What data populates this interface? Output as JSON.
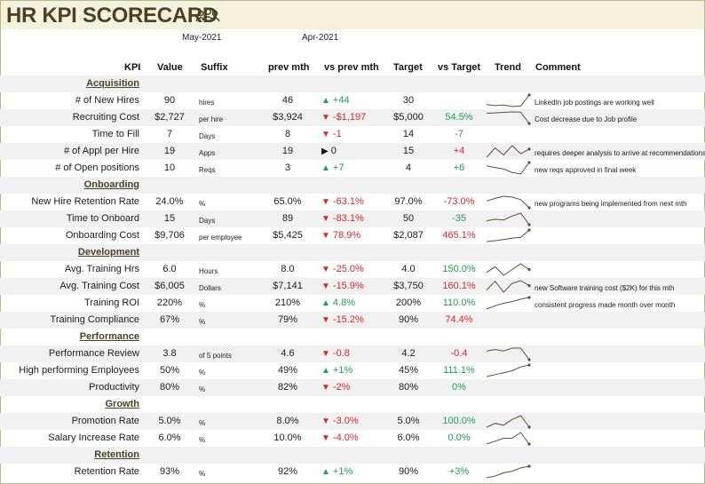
{
  "title": "HR KPI SCORECARD",
  "title_icon": "people-group-icon",
  "dates": {
    "current": "May-2021",
    "previous": "Apr-2021"
  },
  "headers": {
    "kpi": "KPI",
    "value": "Value",
    "suffix": "Suffix",
    "prev": "prev mth",
    "vs_prev": "vs prev mth",
    "target": "Target",
    "vs_target": "vs Target",
    "trend": "Trend",
    "comment": "Comment"
  },
  "colors": {
    "title": "#4b4128",
    "banner": "#f4f1dc",
    "positive": "#1f9e4f",
    "negative": "#d62728",
    "trend_line": "#5c4f3a"
  },
  "sections": [
    {
      "name": "Acquisition",
      "rows": [
        {
          "kpi": "# of New Hires",
          "value": "90",
          "suffix": "hires",
          "prev": "46",
          "dir": "up",
          "vs_prev": "+44",
          "target": "30",
          "vs_target": "",
          "vs_target_status": "",
          "comment": "LinkedIn job postings are working well",
          "trend": [
            52,
            48,
            50,
            44,
            46,
            90
          ]
        },
        {
          "kpi": "Recruiting Cost",
          "value": "$2,727",
          "suffix": "per hire",
          "prev": "$3,924",
          "dir": "down",
          "vs_prev": "-$1,197",
          "target": "$5,000",
          "vs_target": "54.5%",
          "vs_target_status": "good",
          "comment": "Cost decrease due to Job profile",
          "trend": [
            3800,
            3850,
            3900,
            3950,
            3924,
            2727
          ]
        },
        {
          "kpi": "Time to Fill",
          "value": "7",
          "suffix": "Days",
          "prev": "8",
          "dir": "down",
          "vs_prev": "-1",
          "target": "14",
          "vs_target": "-7",
          "vs_target_status": "good",
          "comment": "",
          "trend": []
        },
        {
          "kpi": "# of Appl per Hire",
          "value": "19",
          "suffix": "Apps",
          "prev": "19",
          "dir": "flat",
          "vs_prev": "0",
          "target": "15",
          "vs_target": "+4",
          "vs_target_status": "bad",
          "comment": "requires deeper analysis to arrive at recommendations",
          "trend": [
            12,
            20,
            14,
            22,
            15,
            19
          ]
        },
        {
          "kpi": "# of Open positions",
          "value": "10",
          "suffix": "Reqs",
          "prev": "3",
          "dir": "up",
          "vs_prev": "+7",
          "target": "4",
          "vs_target": "+6",
          "vs_target_status": "good",
          "comment": "new reqs approved in final week",
          "trend": [
            8,
            7,
            6,
            4,
            3,
            10
          ]
        }
      ]
    },
    {
      "name": "Onboarding",
      "rows": [
        {
          "kpi": "New Hire Retention Rate",
          "value": "24.0%",
          "suffix": "%",
          "prev": "65.0%",
          "dir": "down",
          "vs_prev": "-63.1%",
          "target": "97.0%",
          "vs_target": "-73.0%",
          "vs_target_status": "bad",
          "comment": "new programs being implemented from next mth",
          "trend": [
            50,
            60,
            68,
            65,
            55,
            24
          ]
        },
        {
          "kpi": "Time to Onboard",
          "value": "15",
          "suffix": "Days",
          "prev": "89",
          "dir": "down",
          "vs_prev": "-83.1%",
          "target": "50",
          "vs_target": "-35",
          "vs_target_status": "good",
          "comment": "",
          "trend": [
            40,
            50,
            45,
            70,
            89,
            15
          ]
        },
        {
          "kpi": "Onboarding Cost",
          "value": "$9,706",
          "suffix": "per employee",
          "prev": "$5,425",
          "dir": "down",
          "vs_prev": "78.9%",
          "vs_prev_status": "bad",
          "target": "$2,087",
          "vs_target": "465.1%",
          "vs_target_status": "bad",
          "comment": "",
          "trend": [
            3000,
            3500,
            4200,
            5000,
            5425,
            9706
          ]
        }
      ]
    },
    {
      "name": "Development",
      "rows": [
        {
          "kpi": "Avg. Training Hrs",
          "value": "6.0",
          "suffix": "Hours",
          "prev": "8.0",
          "dir": "down",
          "vs_prev": "-25.0%",
          "target": "4.0",
          "vs_target": "150.0%",
          "vs_target_status": "good",
          "comment": "",
          "trend": [
            5,
            7,
            4,
            6,
            8,
            6
          ]
        },
        {
          "kpi": "Avg. Training Cost",
          "value": "$6,005",
          "suffix": "Dollars",
          "prev": "$7,141",
          "dir": "down",
          "vs_prev": "-15.9%",
          "target": "$3,750",
          "vs_target": "160.1%",
          "vs_target_status": "bad",
          "comment": "new Software training cost ($2K) for this mth",
          "trend": [
            5000,
            7000,
            4500,
            6500,
            7141,
            6005
          ]
        },
        {
          "kpi": "Training ROI",
          "value": "220%",
          "suffix": "%",
          "prev": "210%",
          "dir": "up",
          "vs_prev": "4.8%",
          "target": "200%",
          "vs_target": "110.0%",
          "vs_target_status": "good",
          "comment": "consistent progress made month over month",
          "trend": [
            150,
            170,
            185,
            195,
            210,
            220
          ]
        },
        {
          "kpi": "Training Compliance",
          "value": "67%",
          "suffix": "%",
          "prev": "79%",
          "dir": "down",
          "vs_prev": "-15.2%",
          "target": "90%",
          "vs_target": "74.4%",
          "vs_target_status": "bad",
          "comment": "",
          "trend": []
        }
      ]
    },
    {
      "name": "Performance",
      "rows": [
        {
          "kpi": "Performance Review",
          "value": "3.8",
          "suffix": "of 5 points",
          "prev": "4.6",
          "dir": "down",
          "vs_prev": "-0.8",
          "target": "4.2",
          "vs_target": "-0.4",
          "vs_target_status": "bad",
          "comment": "",
          "trend": [
            4.4,
            4.5,
            4.4,
            4.6,
            4.6,
            3.8
          ]
        },
        {
          "kpi": "High performing Employees",
          "value": "50%",
          "suffix": "%",
          "prev": "49%",
          "dir": "up",
          "vs_prev": "+1%",
          "target": "45%",
          "vs_target": "111.1%",
          "vs_target_status": "good",
          "comment": "",
          "trend": [
            44,
            45,
            46,
            47,
            49,
            50
          ]
        },
        {
          "kpi": "Productivity",
          "value": "80%",
          "suffix": "%",
          "prev": "82%",
          "dir": "down",
          "vs_prev": "-2%",
          "target": "80%",
          "vs_target": "0%",
          "vs_target_status": "good",
          "comment": "",
          "trend": []
        }
      ]
    },
    {
      "name": "Growth",
      "rows": [
        {
          "kpi": "Promotion Rate",
          "value": "5.0%",
          "suffix": "%",
          "prev": "8.0%",
          "dir": "down",
          "vs_prev": "-3.0%",
          "target": "5.0%",
          "vs_target": "100.0%",
          "vs_target_status": "good",
          "comment": "",
          "trend": [
            5,
            6,
            5.5,
            7,
            8,
            5
          ]
        },
        {
          "kpi": "Salary Increase Rate",
          "value": "6.0%",
          "suffix": "%",
          "prev": "10.0%",
          "dir": "down",
          "vs_prev": "-4.0%",
          "target": "6.0%",
          "vs_target": "0.0%",
          "vs_target_status": "good",
          "comment": "",
          "trend": [
            6,
            7,
            8,
            8,
            10,
            6
          ]
        }
      ]
    },
    {
      "name": "Retention",
      "rows": [
        {
          "kpi": "Retention Rate",
          "value": "93%",
          "suffix": "%",
          "prev": "92%",
          "dir": "up",
          "vs_prev": "+1%",
          "target": "90%",
          "vs_target": "+3%",
          "vs_target_status": "good",
          "comment": "",
          "trend": [
            86,
            87,
            89,
            90,
            92,
            93
          ]
        }
      ]
    }
  ]
}
